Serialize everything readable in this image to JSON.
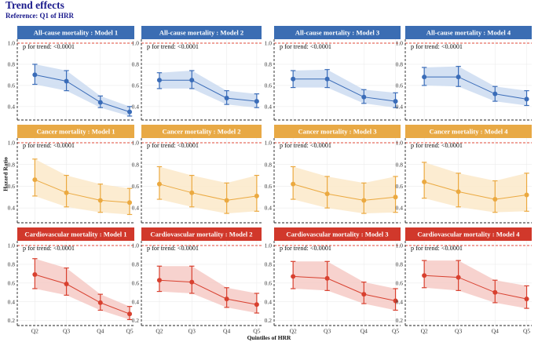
{
  "title": "Trend effects",
  "subtitle": "Reference: Q1 of HRR",
  "ylabel": "Hazard Ratio",
  "xlabel": "Quintiles of HRR",
  "colors": {
    "title": "#1a1a8c",
    "rows": [
      {
        "strip": "#3b6db3",
        "line": "#3a6cb8",
        "band": "#c6d7ef"
      },
      {
        "strip": "#e8a945",
        "line": "#eba940",
        "band": "#fbe6c2"
      },
      {
        "strip": "#d1382b",
        "line": "#d8402f",
        "band": "#f4c3bd"
      }
    ],
    "refline": "#e04a3a"
  },
  "chart_data": [
    {
      "type": "line",
      "row": 0,
      "col": 0,
      "title": "All-cause mortality : Model 1",
      "annotation": "p for trend: <0.0001",
      "categories": [
        "Q2",
        "Q3",
        "Q4",
        "Q5"
      ],
      "values": [
        0.7,
        0.64,
        0.44,
        0.35
      ],
      "lower": [
        0.61,
        0.55,
        0.39,
        0.31
      ],
      "upper": [
        0.8,
        0.74,
        0.5,
        0.4
      ],
      "ylim": [
        0.28,
        1.0
      ],
      "yticks": [
        0.4,
        0.6,
        0.8,
        1.0
      ],
      "ytick_labels": [
        "0.4",
        "0.6",
        "0.8",
        "1.0"
      ],
      "reference_line": 1.0
    },
    {
      "type": "line",
      "row": 0,
      "col": 1,
      "title": "All-cause mortality : Model 2",
      "annotation": "p for trend: <0.0001",
      "categories": [
        "Q2",
        "Q3",
        "Q4",
        "Q5"
      ],
      "values": [
        0.65,
        0.65,
        0.48,
        0.45
      ],
      "lower": [
        0.57,
        0.57,
        0.42,
        0.39
      ],
      "upper": [
        0.72,
        0.74,
        0.55,
        0.52
      ],
      "ylim": [
        0.28,
        1.0
      ],
      "yticks": [
        0.4,
        0.6,
        0.8,
        1.0
      ],
      "ytick_labels": [
        "0.4",
        "0.6",
        "0.8",
        "1.0"
      ],
      "reference_line": 1.0
    },
    {
      "type": "line",
      "row": 0,
      "col": 2,
      "title": "All-cause mortality : Model 3",
      "annotation": "p for trend: <0.0001",
      "categories": [
        "Q2",
        "Q3",
        "Q4",
        "Q5"
      ],
      "values": [
        0.66,
        0.66,
        0.49,
        0.45
      ],
      "lower": [
        0.58,
        0.58,
        0.43,
        0.39
      ],
      "upper": [
        0.74,
        0.75,
        0.56,
        0.53
      ],
      "ylim": [
        0.28,
        1.0
      ],
      "yticks": [
        0.4,
        0.6,
        0.8,
        1.0
      ],
      "ytick_labels": [
        "0.4",
        "0.6",
        "0.8",
        "1.0"
      ],
      "reference_line": 1.0
    },
    {
      "type": "line",
      "row": 0,
      "col": 3,
      "title": "All-cause mortality : Model 4",
      "annotation": "p for trend: <0.0001",
      "categories": [
        "Q2",
        "Q3",
        "Q4",
        "Q5"
      ],
      "values": [
        0.68,
        0.68,
        0.52,
        0.47
      ],
      "lower": [
        0.6,
        0.59,
        0.45,
        0.41
      ],
      "upper": [
        0.77,
        0.78,
        0.59,
        0.55
      ],
      "ylim": [
        0.28,
        1.0
      ],
      "yticks": [
        0.4,
        0.6,
        0.8,
        1.0
      ],
      "ytick_labels": [
        "0.4",
        "0.6",
        "0.8",
        "1.0"
      ],
      "reference_line": 1.0
    },
    {
      "type": "line",
      "row": 1,
      "col": 0,
      "title": "Cancer mortality : Model 1",
      "annotation": "p for trend: <0.0001",
      "categories": [
        "Q2",
        "Q3",
        "Q4",
        "Q5"
      ],
      "values": [
        0.66,
        0.54,
        0.47,
        0.45
      ],
      "lower": [
        0.51,
        0.41,
        0.36,
        0.34
      ],
      "upper": [
        0.85,
        0.7,
        0.62,
        0.58
      ],
      "ylim": [
        0.3,
        1.0
      ],
      "yticks": [
        0.4,
        0.6,
        0.8,
        1.0
      ],
      "ytick_labels": [
        "0.4",
        "0.6",
        "0.8",
        "1.0"
      ],
      "reference_line": 1.0
    },
    {
      "type": "line",
      "row": 1,
      "col": 1,
      "title": "Cancer mortality : Model 2",
      "annotation": "p for trend: <0.0001",
      "categories": [
        "Q2",
        "Q3",
        "Q4",
        "Q5"
      ],
      "values": [
        0.62,
        0.54,
        0.47,
        0.51
      ],
      "lower": [
        0.48,
        0.41,
        0.35,
        0.37
      ],
      "upper": [
        0.78,
        0.7,
        0.63,
        0.7
      ],
      "ylim": [
        0.3,
        1.0
      ],
      "yticks": [
        0.4,
        0.6,
        0.8,
        1.0
      ],
      "ytick_labels": [
        "0.4",
        "0.6",
        "0.8",
        "1.0"
      ],
      "reference_line": 1.0
    },
    {
      "type": "line",
      "row": 1,
      "col": 2,
      "title": "Cancer mortality : Model 3",
      "annotation": "p for trend: <0.0001",
      "categories": [
        "Q2",
        "Q3",
        "Q4",
        "Q5"
      ],
      "values": [
        0.62,
        0.53,
        0.47,
        0.5
      ],
      "lower": [
        0.48,
        0.4,
        0.35,
        0.36
      ],
      "upper": [
        0.78,
        0.69,
        0.63,
        0.69
      ],
      "ylim": [
        0.3,
        1.0
      ],
      "yticks": [
        0.4,
        0.6,
        0.8,
        1.0
      ],
      "ytick_labels": [
        "0.4",
        "0.6",
        "0.8",
        "1.0"
      ],
      "reference_line": 1.0
    },
    {
      "type": "line",
      "row": 1,
      "col": 3,
      "title": "Cancer mortality : Model 4",
      "annotation": "p for trend: <0.0001",
      "categories": [
        "Q2",
        "Q3",
        "Q4",
        "Q5"
      ],
      "values": [
        0.64,
        0.55,
        0.48,
        0.52
      ],
      "lower": [
        0.49,
        0.41,
        0.36,
        0.37
      ],
      "upper": [
        0.82,
        0.72,
        0.65,
        0.72
      ],
      "ylim": [
        0.3,
        1.0
      ],
      "yticks": [
        0.4,
        0.6,
        0.8,
        1.0
      ],
      "ytick_labels": [
        "0.4",
        "0.6",
        "0.8",
        "1.0"
      ],
      "reference_line": 1.0
    },
    {
      "type": "line",
      "row": 2,
      "col": 0,
      "title": "Cardiovascular mortality : Model 1",
      "annotation": "p for trend: <0.0001",
      "categories": [
        "Q2",
        "Q3",
        "Q4",
        "Q5"
      ],
      "values": [
        0.69,
        0.59,
        0.39,
        0.27
      ],
      "lower": [
        0.54,
        0.47,
        0.31,
        0.21
      ],
      "upper": [
        0.86,
        0.76,
        0.48,
        0.35
      ],
      "ylim": [
        0.18,
        1.0
      ],
      "yticks": [
        0.2,
        0.4,
        0.6,
        0.8,
        1.0
      ],
      "ytick_labels": [
        "0.2",
        "0.4",
        "0.6",
        "0.8",
        "1.0"
      ],
      "reference_line": 1.0
    },
    {
      "type": "line",
      "row": 2,
      "col": 1,
      "title": "Cardiovascular mortality : Model 2",
      "annotation": "p for trend: <0.0001",
      "categories": [
        "Q2",
        "Q3",
        "Q4",
        "Q5"
      ],
      "values": [
        0.63,
        0.61,
        0.43,
        0.37
      ],
      "lower": [
        0.51,
        0.49,
        0.34,
        0.28
      ],
      "upper": [
        0.78,
        0.78,
        0.55,
        0.49
      ],
      "ylim": [
        0.18,
        1.0
      ],
      "yticks": [
        0.2,
        0.4,
        0.6,
        0.8,
        1.0
      ],
      "ytick_labels": [
        "0.2",
        "0.4",
        "0.6",
        "0.8",
        "1.0"
      ],
      "reference_line": 1.0
    },
    {
      "type": "line",
      "row": 2,
      "col": 2,
      "title": "Cardiovascular mortality : Model 3",
      "annotation": "p for trend: <0.0001",
      "categories": [
        "Q2",
        "Q3",
        "Q4",
        "Q5"
      ],
      "values": [
        0.67,
        0.65,
        0.48,
        0.41
      ],
      "lower": [
        0.54,
        0.52,
        0.38,
        0.31
      ],
      "upper": [
        0.83,
        0.83,
        0.61,
        0.54
      ],
      "ylim": [
        0.18,
        1.0
      ],
      "yticks": [
        0.2,
        0.4,
        0.6,
        0.8,
        1.0
      ],
      "ytick_labels": [
        "0.2",
        "0.4",
        "0.6",
        "0.8",
        "1.0"
      ],
      "reference_line": 1.0
    },
    {
      "type": "line",
      "row": 2,
      "col": 3,
      "title": "Cardiovascular mortality : Model 4",
      "annotation": "p for trend: <0.0001",
      "categories": [
        "Q2",
        "Q3",
        "Q4",
        "Q5"
      ],
      "values": [
        0.68,
        0.66,
        0.5,
        0.43
      ],
      "lower": [
        0.55,
        0.52,
        0.39,
        0.33
      ],
      "upper": [
        0.84,
        0.84,
        0.63,
        0.57
      ],
      "ylim": [
        0.18,
        1.0
      ],
      "yticks": [
        0.2,
        0.4,
        0.6,
        0.8,
        1.0
      ],
      "ytick_labels": [
        "0.2",
        "0.4",
        "0.6",
        "0.8",
        "1.0"
      ],
      "reference_line": 1.0
    }
  ]
}
